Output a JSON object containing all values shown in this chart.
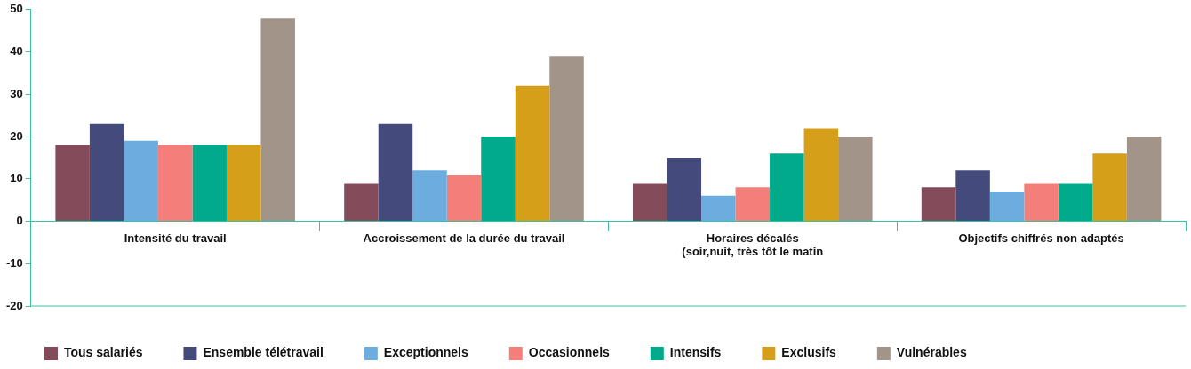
{
  "chart_data": {
    "type": "bar",
    "categories": [
      "Intensité du travail",
      "Accroissement de la durée du travail",
      "Horaires décalés\n(soir,nuit, très tôt le matin",
      "Objectifs chiffrés non adaptés"
    ],
    "series": [
      {
        "name": "Tous salariés",
        "color": "#844b5a",
        "values": [
          18,
          9,
          9,
          8
        ]
      },
      {
        "name": "Ensemble télétravail",
        "color": "#444b7c",
        "values": [
          23,
          23,
          15,
          12
        ]
      },
      {
        "name": "Exceptionnels",
        "color": "#6cacdf",
        "values": [
          19,
          12,
          6,
          7
        ]
      },
      {
        "name": "Occasionnels",
        "color": "#f47f7a",
        "values": [
          18,
          11,
          8,
          9
        ]
      },
      {
        "name": "Intensifs",
        "color": "#00aa8b",
        "values": [
          18,
          20,
          16,
          9
        ]
      },
      {
        "name": "Exclusifs",
        "color": "#d69f1a",
        "values": [
          18,
          32,
          22,
          16
        ]
      },
      {
        "name": "Vulnérables",
        "color": "#a3948a",
        "values": [
          48,
          39,
          20,
          20
        ]
      }
    ],
    "ylim": [
      -20,
      50
    ],
    "yticks": [
      -20,
      -10,
      0,
      10,
      20,
      30,
      40,
      50
    ],
    "grid": false,
    "legend": "bottom"
  }
}
